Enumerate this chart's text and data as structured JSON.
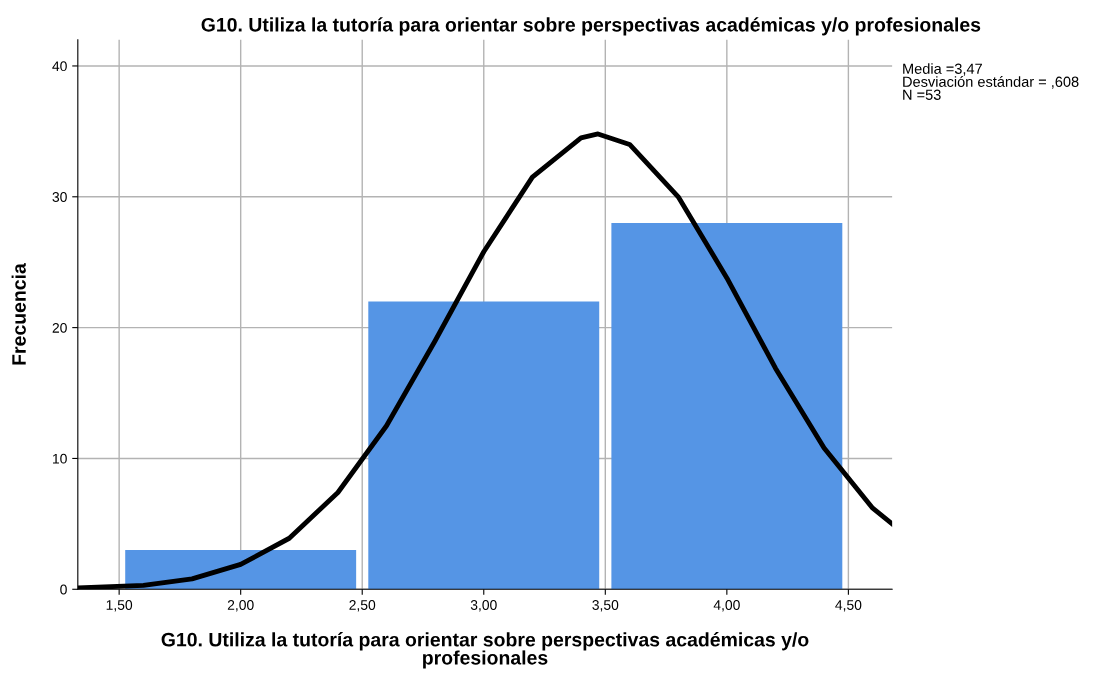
{
  "chart_data": {
    "type": "histogram",
    "title": "G10. Utiliza la tutoría para orientar sobre perspectivas académicas y/o profesionales",
    "xlabel": "G10. Utiliza la tutoría para orientar sobre perspectivas académicas y/o\nprofesionales",
    "ylabel": "Frecuencia",
    "bins": [
      1.5,
      2.5,
      3.5,
      4.5
    ],
    "values": [
      3,
      22,
      28
    ],
    "color": "#5595e5",
    "series": [
      {
        "type": "line",
        "color": "#000000",
        "x": [
          1.33,
          1.6,
          1.8,
          2.0,
          2.2,
          2.4,
          2.6,
          2.8,
          3.0,
          3.2,
          3.4,
          3.47,
          3.6,
          3.8,
          4.0,
          4.2,
          4.4,
          4.6,
          4.68
        ],
        "values": [
          0.1,
          0.3,
          0.8,
          1.9,
          3.9,
          7.4,
          12.5,
          19.0,
          25.8,
          31.5,
          34.5,
          34.8,
          34.0,
          30.0,
          23.8,
          16.9,
          10.8,
          6.2,
          5.0
        ]
      }
    ],
    "xlim": [
      1.33,
      4.68
    ],
    "xticks": [
      {
        "value": 1.5,
        "label": "1,50"
      },
      {
        "value": 2.0,
        "label": "2,00"
      },
      {
        "value": 2.5,
        "label": "2,50"
      },
      {
        "value": 3.0,
        "label": "3,00"
      },
      {
        "value": 3.5,
        "label": "3,50"
      },
      {
        "value": 4.0,
        "label": "4,00"
      },
      {
        "value": 4.5,
        "label": "4,50"
      }
    ],
    "ylim": [
      0,
      42
    ],
    "yticks": [
      0,
      10,
      20,
      30,
      40
    ],
    "grid": true,
    "annotations": [
      "Media =3,47",
      "Desviación estándar = ,608",
      "N =53"
    ]
  }
}
